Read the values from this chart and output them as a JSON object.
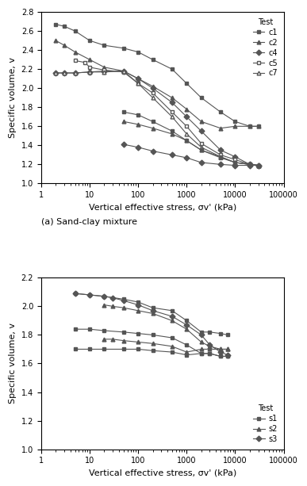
{
  "top": {
    "title": "(a) Sand-clay mixture",
    "xlabel": "Vertical effective stress, σv' (kPa)",
    "ylabel": "Specific volume, v",
    "xlim": [
      1,
      100000
    ],
    "ylim": [
      1.0,
      2.8
    ],
    "yticks": [
      1.0,
      1.2,
      1.4,
      1.6,
      1.8,
      2.0,
      2.2,
      2.4,
      2.6,
      2.8
    ],
    "xticks": [
      1,
      10,
      100,
      1000,
      10000,
      100000
    ],
    "xtick_labels": [
      "1",
      "10",
      "100",
      "1000",
      "10000",
      "100000"
    ],
    "legend_title": "Test",
    "series": {
      "c1": {
        "x": [
          2,
          3,
          5,
          10,
          20,
          50,
          100,
          200,
          500,
          1000,
          2000,
          5000,
          10000,
          20000,
          30000
        ],
        "y": [
          2.67,
          2.65,
          2.6,
          2.5,
          2.45,
          2.42,
          2.38,
          2.3,
          2.2,
          2.05,
          1.9,
          1.75,
          1.65,
          1.6,
          1.6
        ],
        "marker": "s",
        "markersize": 3.5,
        "fillstyle": "full"
      },
      "c2": {
        "x": [
          2,
          3,
          5,
          10,
          20,
          50,
          100,
          200,
          500,
          1000,
          2000,
          5000,
          10000,
          20000,
          30000
        ],
        "y": [
          2.5,
          2.45,
          2.38,
          2.3,
          2.22,
          2.18,
          2.1,
          2.02,
          1.9,
          1.78,
          1.65,
          1.58,
          1.6,
          1.6,
          1.6
        ],
        "marker": "^",
        "markersize": 3.5,
        "fillstyle": "full"
      },
      "c4": {
        "x": [
          2,
          3,
          5,
          10,
          20,
          50,
          100,
          200,
          500,
          1000,
          2000,
          5000,
          10000,
          20000,
          30000
        ],
        "y": [
          2.16,
          2.16,
          2.16,
          2.17,
          2.18,
          2.18,
          2.1,
          2.0,
          1.85,
          1.7,
          1.55,
          1.35,
          1.28,
          1.2,
          1.19
        ],
        "marker": "D",
        "markersize": 3.5,
        "fillstyle": "full"
      },
      "c5": {
        "x": [
          5,
          8,
          10,
          20,
          50,
          100,
          200,
          500,
          1000,
          2000,
          5000,
          10000,
          20000,
          30000
        ],
        "y": [
          2.29,
          2.27,
          2.22,
          2.19,
          2.17,
          2.05,
          1.95,
          1.75,
          1.6,
          1.42,
          1.3,
          1.25,
          1.2,
          1.19
        ],
        "marker": "s",
        "markersize": 3.5,
        "fillstyle": "none"
      },
      "c7": {
        "x": [
          2,
          3,
          5,
          10,
          20,
          50,
          100,
          200,
          500,
          1000,
          2000,
          5000,
          10000,
          20000,
          30000
        ],
        "y": [
          2.16,
          2.16,
          2.16,
          2.17,
          2.17,
          2.18,
          2.05,
          1.9,
          1.7,
          1.52,
          1.38,
          1.28,
          1.22,
          1.2,
          1.19
        ],
        "marker": "^",
        "markersize": 3.5,
        "fillstyle": "none"
      }
    },
    "lower_series": {
      "c1_lower": {
        "x": [
          50,
          100,
          200,
          500,
          1000,
          2000,
          5000,
          10000,
          20000,
          30000
        ],
        "y": [
          1.75,
          1.72,
          1.65,
          1.55,
          1.45,
          1.35,
          1.27,
          1.22,
          1.2,
          1.19
        ],
        "marker": "s",
        "markersize": 3.5,
        "fillstyle": "full"
      },
      "c2_lower": {
        "x": [
          50,
          100,
          200,
          500,
          1000,
          2000,
          5000,
          10000,
          20000,
          30000
        ],
        "y": [
          1.65,
          1.62,
          1.58,
          1.52,
          1.45,
          1.35,
          1.28,
          1.22,
          1.2,
          1.19
        ],
        "marker": "^",
        "markersize": 3.5,
        "fillstyle": "full"
      },
      "c4_lower": {
        "x": [
          50,
          100,
          200,
          500,
          1000,
          2000,
          5000,
          10000,
          20000,
          30000
        ],
        "y": [
          1.41,
          1.38,
          1.34,
          1.3,
          1.27,
          1.22,
          1.2,
          1.19,
          1.19,
          1.19
        ],
        "marker": "D",
        "markersize": 3.5,
        "fillstyle": "full"
      }
    }
  },
  "bottom": {
    "xlabel": "Vertical effective stress, σv' (kPa)",
    "ylabel": "Specific volume, v",
    "xlim": [
      1,
      100000
    ],
    "ylim": [
      1.0,
      2.2
    ],
    "yticks": [
      1.0,
      1.2,
      1.4,
      1.6,
      1.8,
      2.0,
      2.2
    ],
    "xticks": [
      1,
      10,
      100,
      1000,
      10000,
      100000
    ],
    "xtick_labels": [
      "1",
      "10",
      "100",
      "1000",
      "10000",
      "100000"
    ],
    "legend_title": "Test",
    "series": {
      "s1_top": {
        "x": [
          5,
          10,
          20,
          50,
          100,
          200,
          500,
          1000,
          2000,
          3000,
          5000,
          7000
        ],
        "y": [
          2.09,
          2.08,
          2.07,
          2.05,
          2.03,
          1.99,
          1.97,
          1.9,
          1.82,
          1.82,
          1.81,
          1.8
        ],
        "marker": "s",
        "markersize": 3.5,
        "fillstyle": "full",
        "label": "s1"
      },
      "s1_mid": {
        "x": [
          5,
          10,
          20,
          50,
          100,
          200,
          500,
          1000,
          2000,
          3000,
          5000,
          7000
        ],
        "y": [
          1.84,
          1.84,
          1.83,
          1.82,
          1.81,
          1.8,
          1.78,
          1.73,
          1.67,
          1.67,
          1.65,
          1.65
        ],
        "marker": "s",
        "markersize": 3.5,
        "fillstyle": "full",
        "label": null
      },
      "s1_bot": {
        "x": [
          5,
          10,
          20,
          50,
          100,
          200,
          500,
          1000,
          2000,
          3000,
          5000,
          7000
        ],
        "y": [
          1.7,
          1.7,
          1.7,
          1.7,
          1.7,
          1.69,
          1.68,
          1.66,
          1.67,
          1.67,
          1.65,
          1.65
        ],
        "marker": "s",
        "markersize": 3.5,
        "fillstyle": "full",
        "label": null
      },
      "s2_top": {
        "x": [
          20,
          30,
          50,
          100,
          200,
          500,
          1000,
          2000,
          3000,
          5000,
          7000
        ],
        "y": [
          2.01,
          2.0,
          1.99,
          1.97,
          1.95,
          1.9,
          1.84,
          1.75,
          1.72,
          1.7,
          1.7
        ],
        "marker": "^",
        "markersize": 3.5,
        "fillstyle": "full",
        "label": "s2"
      },
      "s2_bot": {
        "x": [
          20,
          30,
          50,
          100,
          200,
          500,
          1000,
          2000,
          3000,
          5000,
          7000
        ],
        "y": [
          1.77,
          1.77,
          1.76,
          1.75,
          1.74,
          1.72,
          1.68,
          1.7,
          1.7,
          1.7,
          1.7
        ],
        "marker": "^",
        "markersize": 3.5,
        "fillstyle": "full",
        "label": null
      },
      "s3": {
        "x": [
          5,
          10,
          20,
          30,
          50,
          100,
          200,
          500,
          1000,
          2000,
          3000,
          5000,
          7000
        ],
        "y": [
          2.09,
          2.08,
          2.07,
          2.06,
          2.04,
          2.01,
          1.97,
          1.93,
          1.87,
          1.8,
          1.73,
          1.68,
          1.66
        ],
        "marker": "D",
        "markersize": 3.5,
        "fillstyle": "full",
        "label": "s3"
      }
    }
  },
  "line_color": "#555555",
  "line_width": 0.8
}
